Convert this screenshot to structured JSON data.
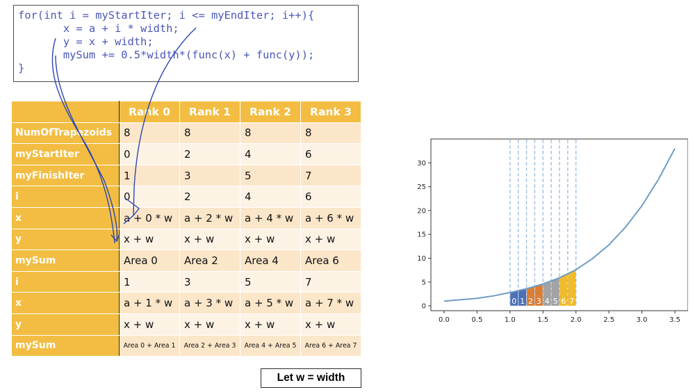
{
  "code": {
    "lines": [
      "for(int i = myStartIter; i <= myEndIter; i++){",
      "       x = a + i * width;",
      "       y = x + width;",
      "       mySum += 0.5*width*(func(x) + func(y));",
      "}"
    ]
  },
  "table": {
    "headers": [
      "",
      "Rank 0",
      "Rank 1",
      "Rank 2",
      "Rank 3"
    ],
    "rows": [
      {
        "label": "NumOfTrapezoids",
        "cells": [
          "8",
          "8",
          "8",
          "8"
        ]
      },
      {
        "label": "myStartIter",
        "cells": [
          "0",
          "2",
          "4",
          "6"
        ]
      },
      {
        "label": "myFinishIter",
        "cells": [
          "1",
          "3",
          "5",
          "7"
        ]
      },
      {
        "label": "i",
        "cells": [
          "0",
          "2",
          "4",
          "6"
        ]
      },
      {
        "label": "x",
        "cells": [
          "a + 0 * w",
          "a + 2 * w",
          "a + 4 * w",
          "a + 6 * w"
        ]
      },
      {
        "label": "y",
        "cells": [
          "x + w",
          "x + w",
          "x + w",
          "x + w"
        ]
      },
      {
        "label": "mySum",
        "cells": [
          "Area 0",
          "Area 2",
          "Area 4",
          "Area 6"
        ]
      },
      {
        "label": "i",
        "cells": [
          "1",
          "3",
          "5",
          "7"
        ]
      },
      {
        "label": "x",
        "cells": [
          "a + 1 * w",
          "a + 3 * w",
          "a + 5 * w",
          "a + 7 * w"
        ]
      },
      {
        "label": "y",
        "cells": [
          "x + w",
          "x + w",
          "x + w",
          "x + w"
        ]
      },
      {
        "label": "mySum",
        "cells": [
          "Area 0 + Area 1",
          "Area 2 + Area 3",
          "Area 4 + Area 5",
          "Area 6 + Area 7"
        ]
      }
    ]
  },
  "note": "Let w = width",
  "chart_data": {
    "type": "area",
    "x_ticks": [
      0.0,
      0.5,
      1.0,
      1.5,
      2.0,
      2.5,
      3.0,
      3.5
    ],
    "y_ticks": [
      0,
      5,
      10,
      15,
      20,
      25,
      30
    ],
    "xlim": [
      -0.2,
      3.7
    ],
    "ylim": [
      -1,
      35
    ],
    "curve": {
      "x": [
        0.0,
        0.25,
        0.5,
        0.75,
        1.0,
        1.25,
        1.5,
        1.75,
        2.0,
        2.25,
        2.5,
        2.75,
        3.0,
        3.25,
        3.5
      ],
      "y": [
        1.0,
        1.3,
        1.6,
        2.1,
        2.8,
        3.6,
        4.6,
        5.9,
        7.6,
        9.9,
        12.8,
        16.5,
        21.0,
        26.5,
        33.0
      ],
      "color": "#6f9cc4"
    },
    "grid_lines_x": [
      1.0,
      1.125,
      1.25,
      1.375,
      1.5,
      1.625,
      1.75,
      1.875,
      2.0
    ],
    "trapezoids": [
      {
        "label": "0",
        "x0": 1.0,
        "x1": 1.125,
        "y0": 2.8,
        "y1": 3.2,
        "color": "#4c6fb5"
      },
      {
        "label": "1",
        "x0": 1.125,
        "x1": 1.25,
        "y0": 3.2,
        "y1": 3.6,
        "color": "#4c6fb5"
      },
      {
        "label": "2",
        "x0": 1.25,
        "x1": 1.375,
        "y0": 3.6,
        "y1": 4.1,
        "color": "#dd7d32"
      },
      {
        "label": "3",
        "x0": 1.375,
        "x1": 1.5,
        "y0": 4.1,
        "y1": 4.6,
        "color": "#dd7d32"
      },
      {
        "label": "4",
        "x0": 1.5,
        "x1": 1.625,
        "y0": 4.6,
        "y1": 5.2,
        "color": "#a3a3a3"
      },
      {
        "label": "5",
        "x0": 1.625,
        "x1": 1.75,
        "y0": 5.2,
        "y1": 5.9,
        "color": "#a3a3a3"
      },
      {
        "label": "6",
        "x0": 1.75,
        "x1": 1.875,
        "y0": 5.9,
        "y1": 6.7,
        "color": "#f2bb2b"
      },
      {
        "label": "7",
        "x0": 1.875,
        "x1": 2.0,
        "y0": 6.7,
        "y1": 7.6,
        "color": "#f2bb2b"
      }
    ],
    "grid": false,
    "title": "",
    "xlabel": "",
    "ylabel": ""
  }
}
